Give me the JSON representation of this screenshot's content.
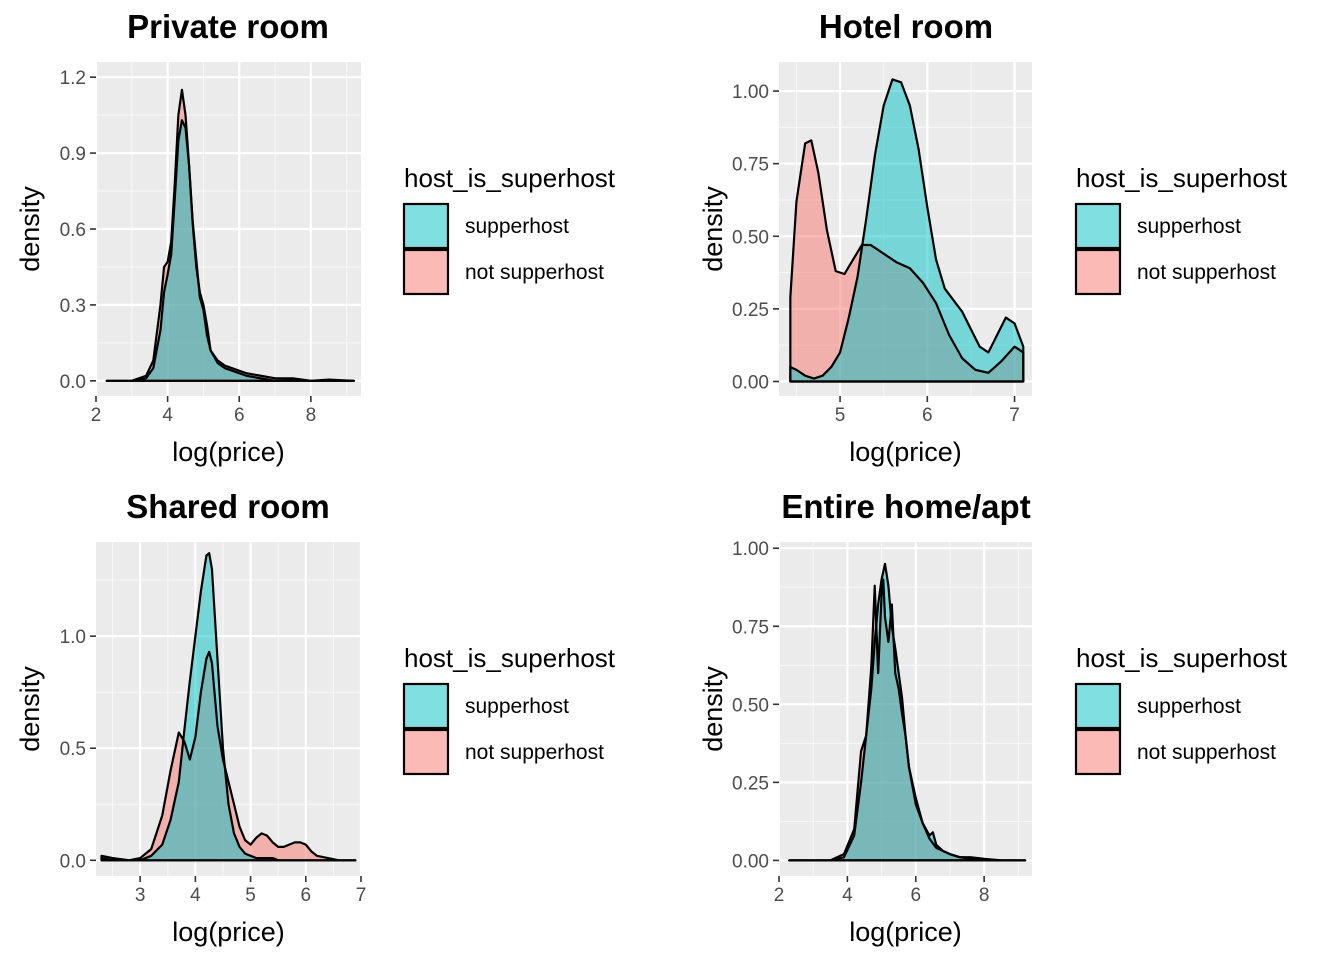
{
  "colors": {
    "supperhost": "#00BFC4",
    "not_supperhost": "#F8766D",
    "panel_bg": "#EBEBEB",
    "grid": "#FFFFFF",
    "outline": "#000000"
  },
  "chart_data": [
    {
      "type": "area",
      "title": "Private room",
      "xlabel": "log(price)",
      "ylabel": "density",
      "xlim": [
        2.0,
        9.4
      ],
      "ylim": [
        -0.06,
        1.26
      ],
      "xticks": [
        2,
        4,
        6,
        8
      ],
      "xtick_labels": [
        "2",
        "4",
        "6",
        "8"
      ],
      "yticks": [
        0,
        0.3,
        0.6,
        0.9,
        1.2
      ],
      "ytick_labels": [
        "0.0",
        "0.3",
        "0.6",
        "0.9",
        "1.2"
      ],
      "grid": true,
      "legend": {
        "title": "host_is_superhost",
        "position": "right",
        "entries": [
          "supperhost",
          "not supperhost"
        ]
      },
      "series": [
        {
          "name": "not supperhost",
          "color_key": "not_supperhost",
          "x": [
            2.3,
            3.0,
            3.4,
            3.6,
            3.8,
            3.9,
            4.0,
            4.1,
            4.2,
            4.3,
            4.4,
            4.5,
            4.6,
            4.7,
            4.8,
            4.9,
            5.0,
            5.1,
            5.2,
            5.4,
            5.6,
            5.8,
            6.2,
            6.6,
            7.0,
            7.5,
            8.0,
            8.5,
            9.2
          ],
          "y": [
            0.0,
            0.0,
            0.02,
            0.08,
            0.3,
            0.45,
            0.47,
            0.55,
            0.78,
            1.05,
            1.15,
            1.05,
            0.85,
            0.62,
            0.45,
            0.35,
            0.3,
            0.22,
            0.12,
            0.08,
            0.06,
            0.05,
            0.03,
            0.02,
            0.01,
            0.01,
            0.0,
            0.005,
            0.0
          ]
        },
        {
          "name": "supperhost",
          "color_key": "supperhost",
          "x": [
            2.3,
            3.0,
            3.4,
            3.6,
            3.8,
            3.9,
            4.0,
            4.1,
            4.2,
            4.3,
            4.4,
            4.5,
            4.6,
            4.7,
            4.8,
            4.9,
            5.0,
            5.1,
            5.2,
            5.4,
            5.6,
            5.8,
            6.2,
            6.6,
            7.0,
            7.5,
            8.0,
            8.5,
            9.2
          ],
          "y": [
            0.0,
            0.0,
            0.01,
            0.05,
            0.2,
            0.35,
            0.42,
            0.5,
            0.72,
            0.95,
            1.03,
            1.0,
            0.85,
            0.63,
            0.48,
            0.33,
            0.28,
            0.18,
            0.12,
            0.07,
            0.05,
            0.04,
            0.02,
            0.01,
            0.0,
            0.005,
            0.0,
            0.0,
            0.0
          ]
        }
      ]
    },
    {
      "type": "area",
      "title": "Hotel room",
      "xlabel": "log(price)",
      "ylabel": "density",
      "xlim": [
        4.3,
        7.2
      ],
      "ylim": [
        -0.05,
        1.1
      ],
      "xticks": [
        5,
        6,
        7
      ],
      "xtick_labels": [
        "5",
        "6",
        "7"
      ],
      "yticks": [
        0,
        0.25,
        0.5,
        0.75,
        1.0
      ],
      "ytick_labels": [
        "0.00",
        "0.25",
        "0.50",
        "0.75",
        "1.00"
      ],
      "grid": true,
      "legend": {
        "title": "host_is_superhost",
        "position": "right",
        "entries": [
          "supperhost",
          "not supperhost"
        ]
      },
      "series": [
        {
          "name": "not supperhost",
          "color_key": "not_supperhost",
          "x": [
            4.43,
            4.5,
            4.6,
            4.67,
            4.75,
            4.85,
            4.95,
            5.05,
            5.15,
            5.25,
            5.35,
            5.5,
            5.65,
            5.8,
            5.95,
            6.1,
            6.25,
            6.4,
            6.55,
            6.7,
            6.85,
            7.0,
            7.1
          ],
          "y": [
            0.29,
            0.62,
            0.82,
            0.83,
            0.72,
            0.52,
            0.38,
            0.37,
            0.42,
            0.47,
            0.47,
            0.44,
            0.41,
            0.39,
            0.34,
            0.27,
            0.16,
            0.08,
            0.04,
            0.03,
            0.07,
            0.12,
            0.1
          ]
        },
        {
          "name": "supperhost",
          "color_key": "supperhost",
          "x": [
            4.43,
            4.5,
            4.6,
            4.7,
            4.8,
            4.9,
            5.0,
            5.1,
            5.2,
            5.3,
            5.4,
            5.5,
            5.6,
            5.7,
            5.8,
            5.9,
            6.0,
            6.1,
            6.2,
            6.3,
            6.4,
            6.5,
            6.6,
            6.7,
            6.8,
            6.9,
            7.0,
            7.1
          ],
          "y": [
            0.05,
            0.04,
            0.02,
            0.01,
            0.02,
            0.05,
            0.1,
            0.22,
            0.36,
            0.56,
            0.78,
            0.95,
            1.04,
            1.03,
            0.95,
            0.8,
            0.6,
            0.42,
            0.32,
            0.28,
            0.24,
            0.18,
            0.12,
            0.1,
            0.16,
            0.22,
            0.2,
            0.12
          ]
        }
      ]
    },
    {
      "type": "area",
      "title": "Shared room",
      "xlabel": "log(price)",
      "ylabel": "density",
      "xlim": [
        2.2,
        7.0
      ],
      "ylim": [
        -0.07,
        1.42
      ],
      "xticks": [
        3,
        4,
        5,
        6,
        7
      ],
      "xtick_labels": [
        "3",
        "4",
        "5",
        "6",
        "7"
      ],
      "yticks": [
        0,
        0.5,
        1.0
      ],
      "ytick_labels": [
        "0.0",
        "0.5",
        "1.0"
      ],
      "grid": true,
      "legend": {
        "title": "host_is_superhost",
        "position": "right",
        "entries": [
          "supperhost",
          "not supperhost"
        ]
      },
      "series": [
        {
          "name": "not supperhost",
          "color_key": "not_supperhost",
          "x": [
            2.3,
            2.5,
            2.8,
            3.0,
            3.2,
            3.4,
            3.55,
            3.7,
            3.8,
            3.9,
            4.0,
            4.1,
            4.2,
            4.25,
            4.3,
            4.4,
            4.5,
            4.6,
            4.7,
            4.8,
            4.9,
            5.0,
            5.1,
            5.2,
            5.3,
            5.4,
            5.5,
            5.6,
            5.7,
            5.8,
            5.9,
            6.0,
            6.1,
            6.2,
            6.4,
            6.6,
            6.9
          ],
          "y": [
            0.02,
            0.01,
            0.0,
            0.01,
            0.05,
            0.2,
            0.4,
            0.57,
            0.53,
            0.45,
            0.55,
            0.75,
            0.9,
            0.93,
            0.88,
            0.6,
            0.45,
            0.35,
            0.25,
            0.15,
            0.09,
            0.07,
            0.1,
            0.12,
            0.11,
            0.08,
            0.06,
            0.06,
            0.07,
            0.08,
            0.08,
            0.07,
            0.04,
            0.02,
            0.01,
            0.0,
            0.0
          ]
        },
        {
          "name": "supperhost",
          "color_key": "supperhost",
          "x": [
            2.3,
            2.5,
            2.8,
            3.0,
            3.2,
            3.4,
            3.55,
            3.7,
            3.8,
            3.9,
            4.0,
            4.1,
            4.2,
            4.25,
            4.3,
            4.4,
            4.5,
            4.6,
            4.7,
            4.8,
            4.9,
            5.0,
            5.1,
            5.2,
            5.3,
            5.4,
            5.5,
            5.6,
            5.7,
            5.8,
            5.9,
            6.0,
            6.1,
            6.2,
            6.4,
            6.6,
            6.9
          ],
          "y": [
            0.01,
            0.0,
            0.0,
            0.0,
            0.02,
            0.07,
            0.18,
            0.35,
            0.58,
            0.8,
            1.0,
            1.2,
            1.36,
            1.37,
            1.3,
            0.9,
            0.5,
            0.25,
            0.12,
            0.06,
            0.03,
            0.02,
            0.01,
            0.01,
            0.01,
            0.01,
            0.0,
            0.0,
            0.0,
            0.0,
            0.0,
            0.0,
            0.0,
            0.0,
            0.0,
            0.0,
            0.0
          ]
        }
      ]
    },
    {
      "type": "area",
      "title": "Entire home/apt",
      "xlabel": "log(price)",
      "ylabel": "density",
      "xlim": [
        2.0,
        9.4
      ],
      "ylim": [
        -0.05,
        1.02
      ],
      "xticks": [
        2,
        4,
        6,
        8
      ],
      "xtick_labels": [
        "2",
        "4",
        "6",
        "8"
      ],
      "yticks": [
        0,
        0.25,
        0.5,
        0.75,
        1.0
      ],
      "ytick_labels": [
        "0.00",
        "0.25",
        "0.50",
        "0.75",
        "1.00"
      ],
      "grid": true,
      "legend": {
        "title": "host_is_superhost",
        "position": "right",
        "entries": [
          "supperhost",
          "not supperhost"
        ]
      },
      "series": [
        {
          "name": "not supperhost",
          "color_key": "not_supperhost",
          "x": [
            2.3,
            3.5,
            3.9,
            4.2,
            4.4,
            4.55,
            4.7,
            4.8,
            4.9,
            5.0,
            5.05,
            5.1,
            5.2,
            5.3,
            5.4,
            5.5,
            5.6,
            5.7,
            5.8,
            6.0,
            6.2,
            6.4,
            6.6,
            6.8,
            7.0,
            7.3,
            7.6,
            8.0,
            8.5,
            9.2
          ],
          "y": [
            0.0,
            0.0,
            0.02,
            0.1,
            0.35,
            0.4,
            0.62,
            0.88,
            0.6,
            0.85,
            0.9,
            0.78,
            0.7,
            0.82,
            0.6,
            0.55,
            0.47,
            0.4,
            0.3,
            0.18,
            0.12,
            0.07,
            0.04,
            0.03,
            0.02,
            0.01,
            0.01,
            0.005,
            0.0,
            0.0
          ]
        },
        {
          "name": "supperhost",
          "color_key": "supperhost",
          "x": [
            2.3,
            3.5,
            3.9,
            4.2,
            4.4,
            4.55,
            4.7,
            4.8,
            4.9,
            5.0,
            5.1,
            5.2,
            5.3,
            5.4,
            5.5,
            5.6,
            5.7,
            5.8,
            6.0,
            6.2,
            6.4,
            6.5,
            6.6,
            6.8,
            7.0,
            7.3,
            7.6,
            8.0,
            8.5,
            9.2
          ],
          "y": [
            0.0,
            0.0,
            0.01,
            0.08,
            0.25,
            0.4,
            0.55,
            0.7,
            0.82,
            0.9,
            0.95,
            0.88,
            0.75,
            0.68,
            0.6,
            0.52,
            0.4,
            0.3,
            0.2,
            0.12,
            0.08,
            0.09,
            0.05,
            0.03,
            0.02,
            0.01,
            0.005,
            0.0,
            0.0,
            0.0
          ]
        }
      ]
    }
  ]
}
